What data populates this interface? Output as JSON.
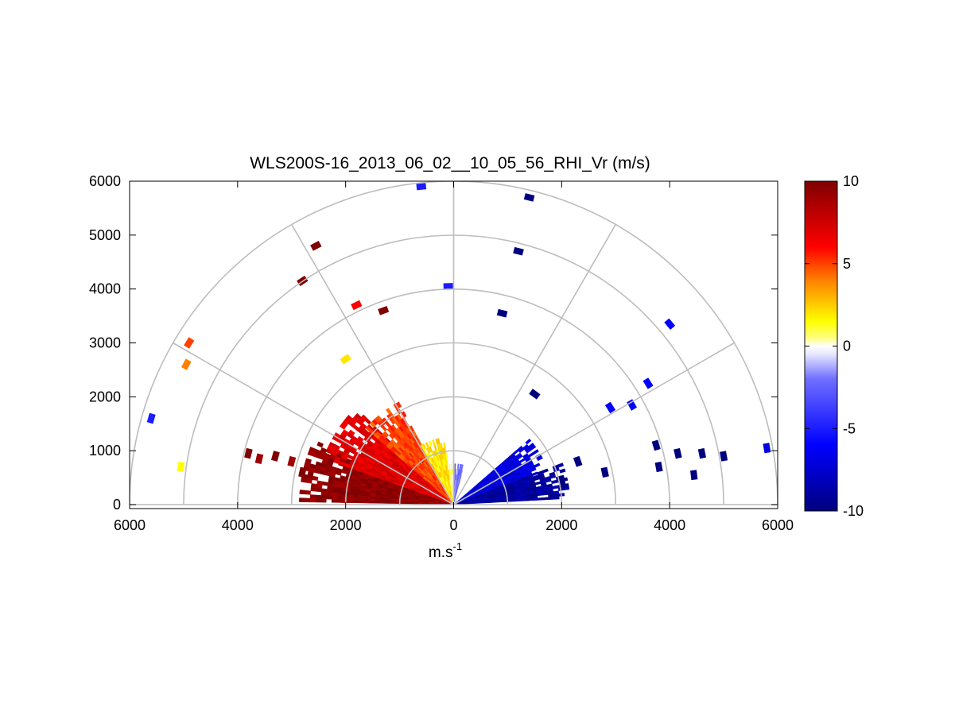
{
  "chart_data": {
    "type": "heatmap",
    "subtype": "polar-rhi-scan",
    "title": "WLS200S-16_2013_06_02__10_05_56_RHI_Vr (m/s)",
    "xlabel": "m.s",
    "xlabel_superscript": "-1",
    "ylabel": "",
    "xlim": [
      -6000,
      6000
    ],
    "ylim": [
      0,
      6000
    ],
    "x_ticks": [
      -6000,
      -4000,
      -2000,
      0,
      2000,
      4000,
      6000
    ],
    "x_tick_labels": [
      "6000",
      "4000",
      "2000",
      "0",
      "2000",
      "4000",
      "6000"
    ],
    "y_ticks": [
      0,
      1000,
      2000,
      3000,
      4000,
      5000,
      6000
    ],
    "y_tick_labels": [
      "0",
      "1000",
      "2000",
      "3000",
      "4000",
      "5000",
      "6000"
    ],
    "range_rings": [
      1000,
      2000,
      3000,
      4000,
      5000,
      6000
    ],
    "radial_lines_deg": [
      30,
      60,
      90,
      120,
      150
    ],
    "colorbar": {
      "min": -10,
      "max": 10,
      "ticks": [
        10,
        5,
        0,
        -5,
        -10
      ],
      "tick_labels": [
        "10",
        "5",
        "0",
        "-5",
        "-10"
      ],
      "colormap": "blue-white-yellow-red",
      "stops": [
        {
          "v": -10,
          "color": "#00007f"
        },
        {
          "v": -6,
          "color": "#0000ff"
        },
        {
          "v": -2,
          "color": "#6f6fff"
        },
        {
          "v": -0.5,
          "color": "#e6e6ff"
        },
        {
          "v": 0,
          "color": "#ffffff"
        },
        {
          "v": 0.5,
          "color": "#ffff80"
        },
        {
          "v": 1.5,
          "color": "#ffff00"
        },
        {
          "v": 4,
          "color": "#ff8000"
        },
        {
          "v": 6,
          "color": "#ff0000"
        },
        {
          "v": 10,
          "color": "#7f0000"
        }
      ]
    },
    "near_field_sectors": [
      {
        "name": "west-near",
        "a1": 155,
        "a2": 178,
        "r1": 60,
        "r2": 2800,
        "v": 9.5
      },
      {
        "name": "west-mid",
        "a1": 135,
        "a2": 160,
        "r1": 60,
        "r2": 2500,
        "v": 7
      },
      {
        "name": "west-upper",
        "a1": 118,
        "a2": 138,
        "r1": 60,
        "r2": 2100,
        "v": 5
      },
      {
        "name": "west-steep",
        "a1": 98,
        "a2": 118,
        "r1": 60,
        "r2": 1200,
        "v": 2
      },
      {
        "name": "zenith",
        "a1": 88,
        "a2": 98,
        "r1": 60,
        "r2": 700,
        "v": 0.5
      },
      {
        "name": "east-steep",
        "a1": 75,
        "a2": 88,
        "r1": 60,
        "r2": 700,
        "v": -2
      },
      {
        "name": "east-mid",
        "a1": 20,
        "a2": 40,
        "r1": 60,
        "r2": 1800,
        "v": -7
      },
      {
        "name": "east-near",
        "a1": 3,
        "a2": 20,
        "r1": 60,
        "r2": 2100,
        "v": -9
      }
    ],
    "far_field_cells": [
      {
        "x": -2800,
        "y": 600,
        "v": 10
      },
      {
        "x": -3300,
        "y": 900,
        "v": 10
      },
      {
        "x": -3800,
        "y": 950,
        "v": 10
      },
      {
        "x": -3000,
        "y": 800,
        "v": 9
      },
      {
        "x": -3600,
        "y": 850,
        "v": 9
      },
      {
        "x": -2550,
        "y": 4800,
        "v": 10
      },
      {
        "x": -2800,
        "y": 4150,
        "v": 10
      },
      {
        "x": -1800,
        "y": 3700,
        "v": 6
      },
      {
        "x": -1300,
        "y": 3600,
        "v": 10
      },
      {
        "x": -4900,
        "y": 3000,
        "v": 5
      },
      {
        "x": -4950,
        "y": 2600,
        "v": 4
      },
      {
        "x": -2000,
        "y": 2700,
        "v": 2
      },
      {
        "x": -5600,
        "y": 1600,
        "v": -5
      },
      {
        "x": -5050,
        "y": 700,
        "v": 1.5
      },
      {
        "x": -600,
        "y": 5900,
        "v": -5
      },
      {
        "x": -100,
        "y": 4050,
        "v": -5
      },
      {
        "x": 1400,
        "y": 5700,
        "v": -10
      },
      {
        "x": 1200,
        "y": 4700,
        "v": -10
      },
      {
        "x": 900,
        "y": 3550,
        "v": -10
      },
      {
        "x": 4000,
        "y": 3350,
        "v": -6
      },
      {
        "x": 3600,
        "y": 2250,
        "v": -6
      },
      {
        "x": 2900,
        "y": 1800,
        "v": -6
      },
      {
        "x": 3300,
        "y": 1850,
        "v": -6
      },
      {
        "x": 1500,
        "y": 2050,
        "v": -10
      },
      {
        "x": 3750,
        "y": 1100,
        "v": -10
      },
      {
        "x": 4150,
        "y": 950,
        "v": -10
      },
      {
        "x": 4600,
        "y": 950,
        "v": -10
      },
      {
        "x": 5000,
        "y": 900,
        "v": -10
      },
      {
        "x": 4450,
        "y": 550,
        "v": -10
      },
      {
        "x": 3800,
        "y": 700,
        "v": -10
      },
      {
        "x": 5800,
        "y": 1050,
        "v": -7
      },
      {
        "x": 2300,
        "y": 800,
        "v": -10
      },
      {
        "x": 2800,
        "y": 600,
        "v": -10
      },
      {
        "x": 2000,
        "y": 450,
        "v": -10
      }
    ]
  }
}
